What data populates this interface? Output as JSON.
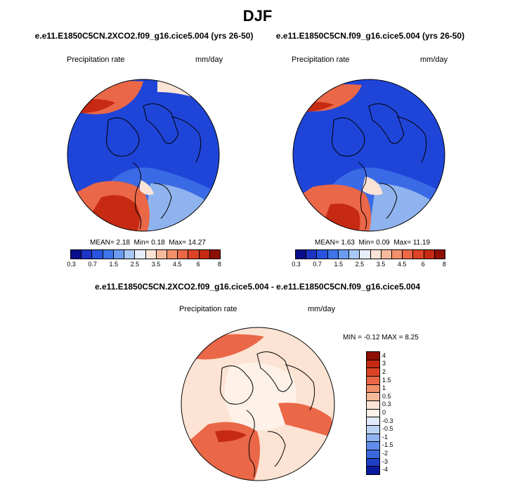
{
  "season": "DJF",
  "left_panel": {
    "case": "e.e11.E1850C5CN.2XCO2.f09_g16.cice5.004 (yrs 26-50)",
    "variable": "Precipitation rate",
    "units": "mm/day",
    "stats": {
      "mean_label": "MEAN=",
      "mean": "2.18",
      "min_label": "Min=",
      "min": "0.18",
      "max_label": "Max=",
      "max": "14.27"
    }
  },
  "right_panel": {
    "case": "e.e11.E1850C5CN.f09_g16.cice5.004 (yrs 26-50)",
    "variable": "Precipitation rate",
    "units": "mm/day",
    "stats": {
      "mean_label": "MEAN=",
      "mean": "1.63",
      "min_label": "Min=",
      "min": "0.09",
      "max_label": "Max=",
      "max": "11.19"
    }
  },
  "diff_panel": {
    "title": "e.e11.E1850C5CN.2XCO2.f09_g16.cice5.004 - e.e11.E1850C5CN.f09_g16.cice5.004",
    "variable": "Precipitation rate",
    "units": "mm/day",
    "stats_text": "MIN =  -0.12 MAX =    8.25"
  },
  "abs_colorbar": {
    "colors": [
      "#0a0e8c",
      "#1c33c4",
      "#2952e0",
      "#3d74ea",
      "#6b9cf0",
      "#a8c8f7",
      "#e8eef9",
      "#fbe4d6",
      "#f6b99a",
      "#f2906c",
      "#ea6747",
      "#dd4326",
      "#c62a12",
      "#8e0f05"
    ],
    "tick_labels": [
      "0.3",
      "",
      "0.7",
      "",
      "1.5",
      "",
      "2.5",
      "",
      "3.5",
      "",
      "4.5",
      "",
      "6",
      "",
      "8"
    ]
  },
  "diff_colorbar": {
    "colors": [
      "#8e0f05",
      "#c62a12",
      "#dd4326",
      "#ea6747",
      "#f2906c",
      "#f6b99a",
      "#fbe4d6",
      "#fdf1e8",
      "#e1eaf8",
      "#bcd2f4",
      "#8fb3ee",
      "#5f8deb",
      "#3a68dc",
      "#1f3fc5",
      "#0a1a9e"
    ],
    "tick_labels": [
      "4",
      "3",
      "2",
      "1.5",
      "1",
      "0.5",
      "0.3",
      "0",
      "-0.3",
      "-0.5",
      "-1",
      "-1.5",
      "-2",
      "-3",
      "-4"
    ]
  },
  "map_colors": {
    "ocean_deep_blue": "#1f45d8",
    "mid_blue": "#3a6ae6",
    "light_blue": "#8fb3ee",
    "pale": "#fbe4d6",
    "orange": "#ea6747",
    "red": "#c62a12",
    "dark_red": "#8e0f05",
    "diff_background": "#fce3d3",
    "diff_pale": "#fdf1e8",
    "coastline": "#000000"
  }
}
